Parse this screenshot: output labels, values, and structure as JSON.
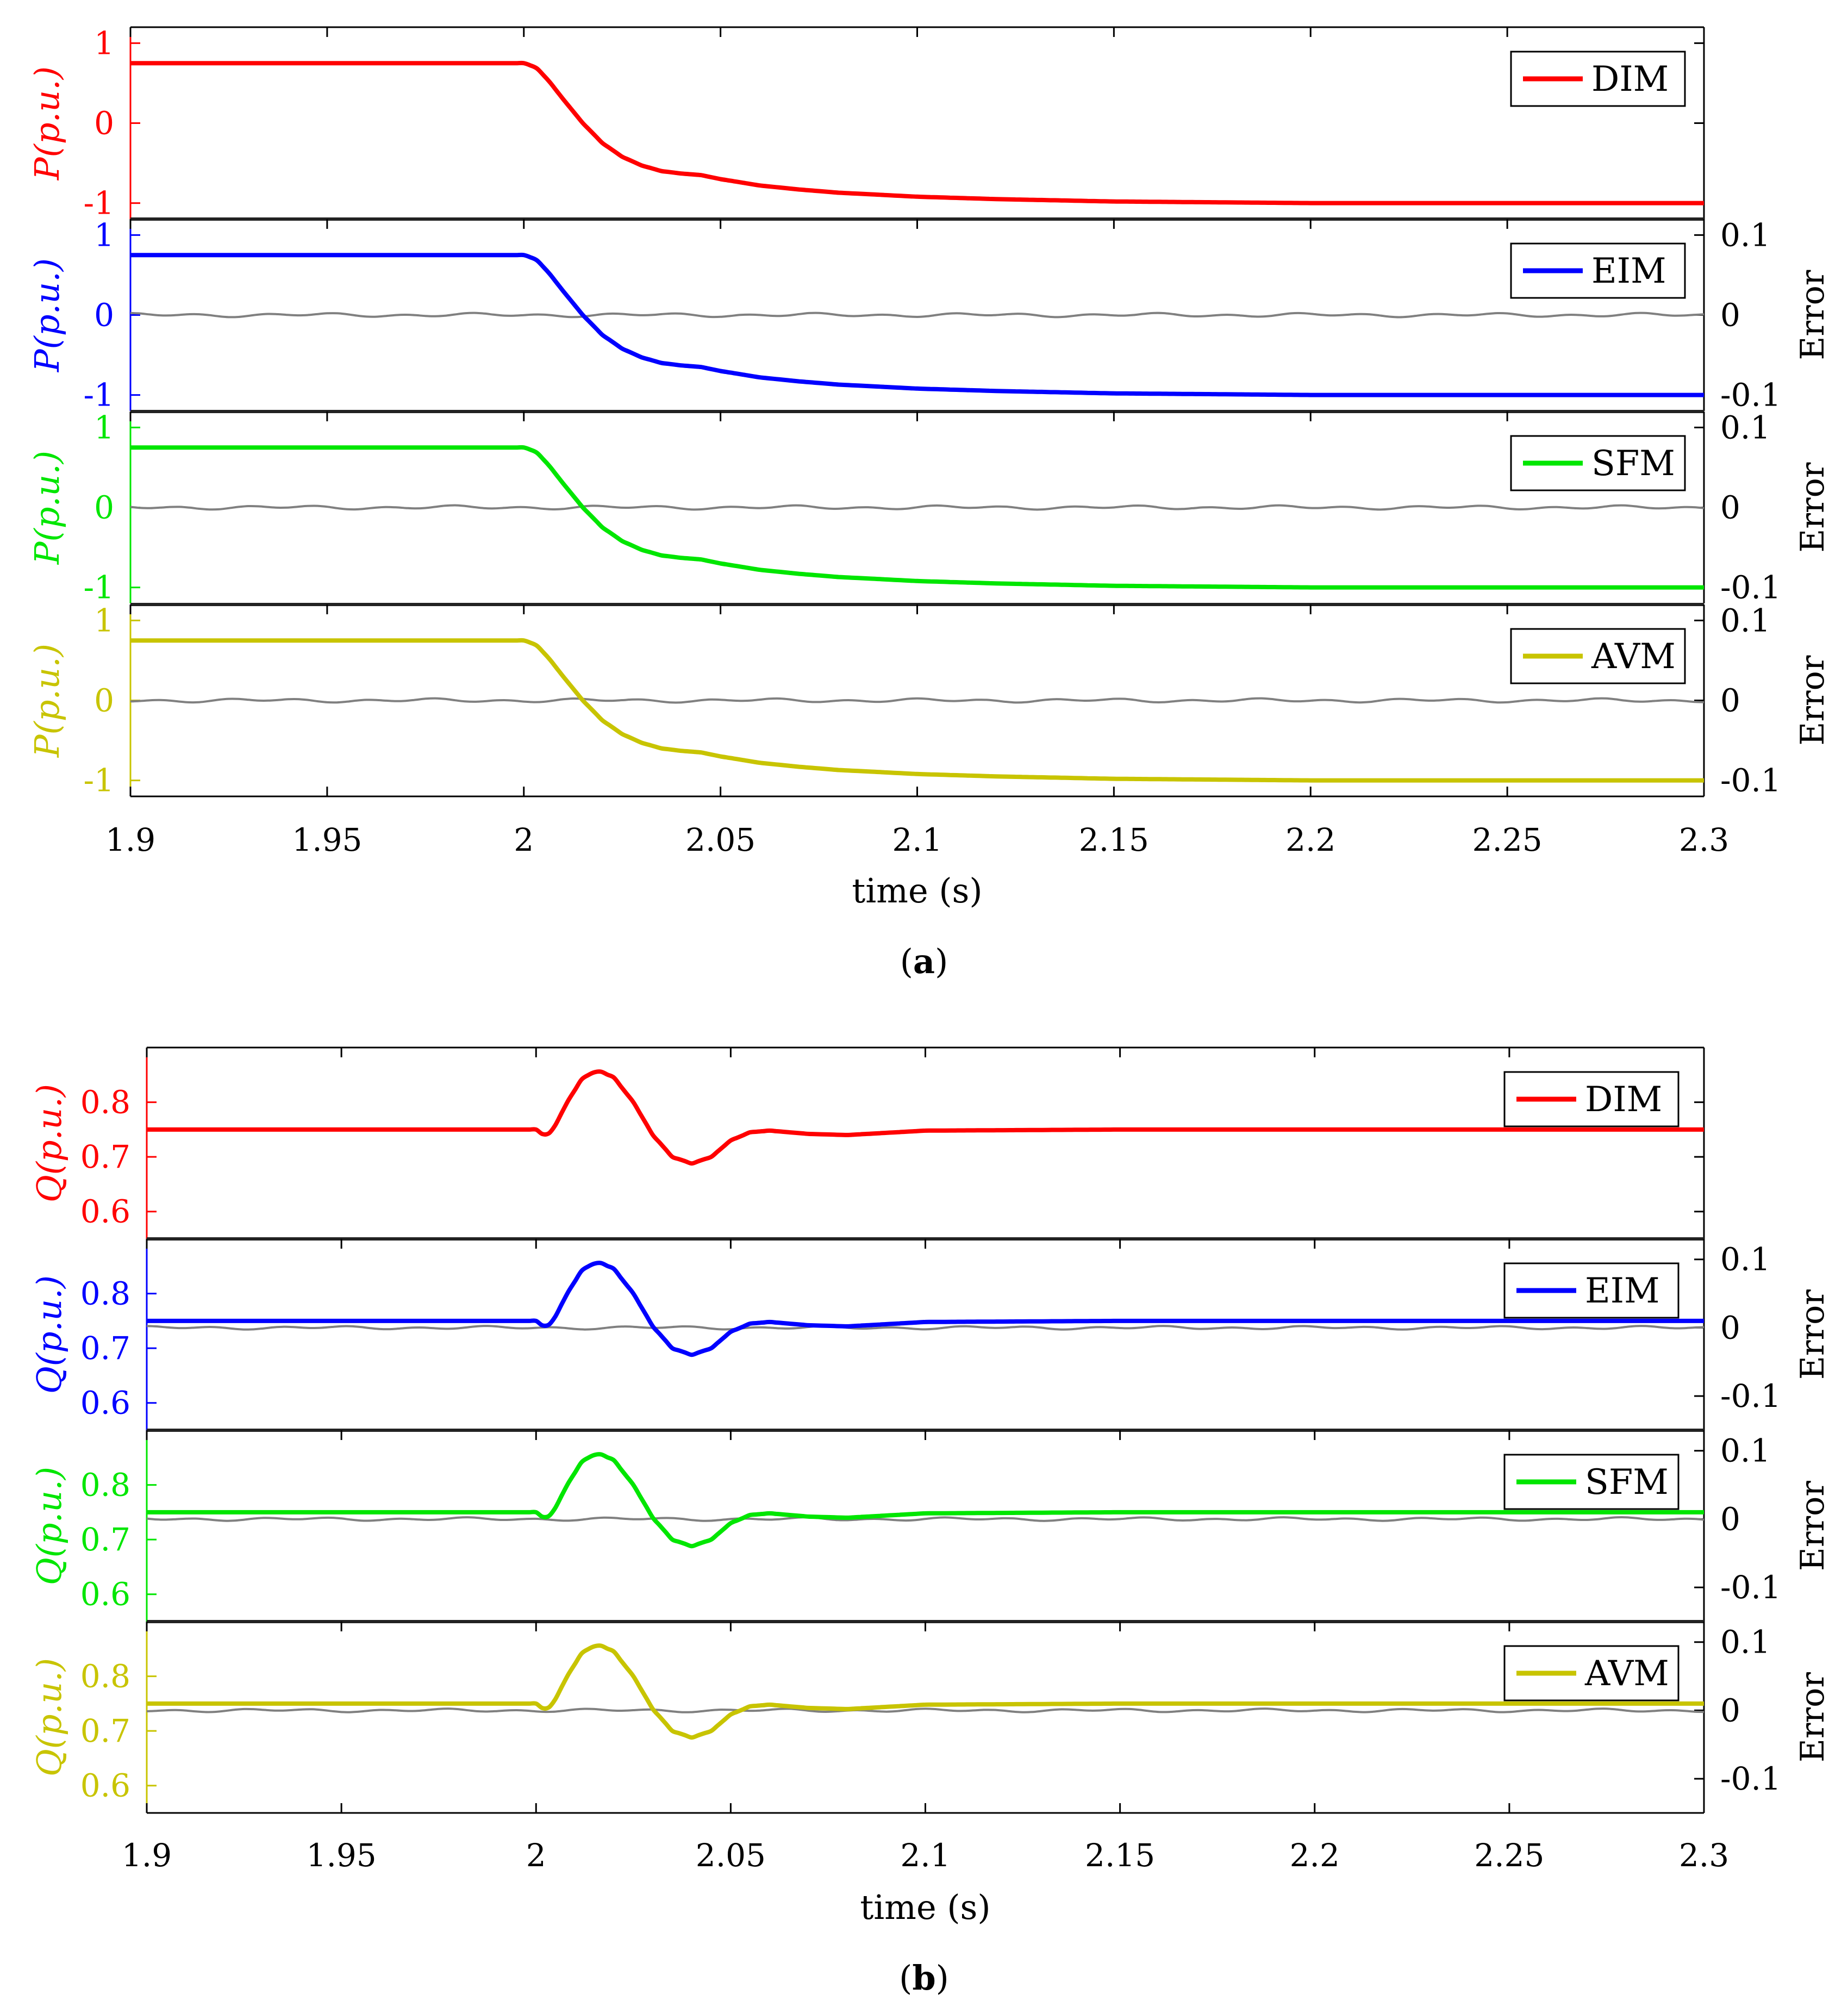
{
  "figure": {
    "captions": [
      "(a)",
      "(b)"
    ],
    "caption_letters": [
      "a",
      "b"
    ]
  },
  "chart_data": [
    {
      "type": "line",
      "panel": "a",
      "quantity": "P",
      "ylabel": "P(p.u.)",
      "xlabel": "time (s)",
      "xlim": [
        1.9,
        2.3
      ],
      "xticks": [
        1.9,
        1.95,
        2,
        2.05,
        2.1,
        2.15,
        2.2,
        2.25,
        2.3
      ],
      "xtick_labels": [
        "1.9",
        "1.95",
        "2",
        "2.05",
        "2.1",
        "2.15",
        "2.2",
        "2.25",
        "2.3"
      ],
      "ylim": [
        -1.2,
        1.2
      ],
      "yticks": [
        1,
        0,
        -1
      ],
      "ytick_labels": [
        "1",
        "0",
        "-1"
      ],
      "error_axis": {
        "label": "Error",
        "ylim": [
          -0.12,
          0.12
        ],
        "ticks": [
          0.1,
          0,
          -0.1
        ],
        "tick_labels": [
          "0.1",
          "0",
          "-0.1"
        ]
      },
      "subplots": [
        {
          "name": "DIM",
          "color": "#ff0000",
          "has_error": false
        },
        {
          "name": "EIM",
          "color": "#0000ff",
          "has_error": true
        },
        {
          "name": "SFM",
          "color": "#00e600",
          "has_error": true
        },
        {
          "name": "AVM",
          "color": "#c8c400",
          "has_error": true
        }
      ],
      "error_color": "#808080",
      "series_points": {
        "t": [
          1.9,
          2.0,
          2.003,
          2.006,
          2.01,
          2.015,
          2.02,
          2.025,
          2.03,
          2.035,
          2.04,
          2.045,
          2.05,
          2.06,
          2.07,
          2.08,
          2.1,
          2.12,
          2.15,
          2.2,
          2.25,
          2.3
        ],
        "y": [
          0.75,
          0.75,
          0.7,
          0.55,
          0.3,
          0.0,
          -0.25,
          -0.42,
          -0.53,
          -0.6,
          -0.63,
          -0.65,
          -0.7,
          -0.78,
          -0.83,
          -0.87,
          -0.92,
          -0.95,
          -0.98,
          -1.0,
          -1.0,
          -1.0
        ]
      }
    },
    {
      "type": "line",
      "panel": "b",
      "quantity": "Q",
      "ylabel": "Q(p.u.)",
      "xlabel": "time (s)",
      "xlim": [
        1.9,
        2.3
      ],
      "xticks": [
        1.9,
        1.95,
        2,
        2.05,
        2.1,
        2.15,
        2.2,
        2.25,
        2.3
      ],
      "xtick_labels": [
        "1.9",
        "1.95",
        "2",
        "2.05",
        "2.1",
        "2.15",
        "2.2",
        "2.25",
        "2.3"
      ],
      "ylim": [
        0.55,
        0.9
      ],
      "yticks": [
        0.8,
        0.7,
        0.6
      ],
      "ytick_labels": [
        "0.8",
        "0.7",
        "0.6"
      ],
      "error_axis": {
        "label": "Error",
        "ylim": [
          -0.15,
          0.13
        ],
        "ticks": [
          0.1,
          0,
          -0.1
        ],
        "tick_labels": [
          "0.1",
          "0",
          "-0.1"
        ]
      },
      "subplots": [
        {
          "name": "DIM",
          "color": "#ff0000",
          "has_error": false
        },
        {
          "name": "EIM",
          "color": "#0000ff",
          "has_error": true
        },
        {
          "name": "SFM",
          "color": "#00e600",
          "has_error": true
        },
        {
          "name": "AVM",
          "color": "#c8c400",
          "has_error": true
        }
      ],
      "error_color": "#808080",
      "series_points": {
        "t": [
          1.9,
          2.0,
          2.002,
          2.004,
          2.008,
          2.012,
          2.016,
          2.02,
          2.025,
          2.03,
          2.035,
          2.04,
          2.045,
          2.05,
          2.055,
          2.06,
          2.07,
          2.08,
          2.1,
          2.15,
          2.2,
          2.3
        ],
        "y": [
          0.75,
          0.75,
          0.74,
          0.745,
          0.8,
          0.845,
          0.858,
          0.845,
          0.8,
          0.74,
          0.7,
          0.688,
          0.7,
          0.73,
          0.745,
          0.748,
          0.742,
          0.74,
          0.748,
          0.75,
          0.75,
          0.75
        ]
      }
    }
  ]
}
